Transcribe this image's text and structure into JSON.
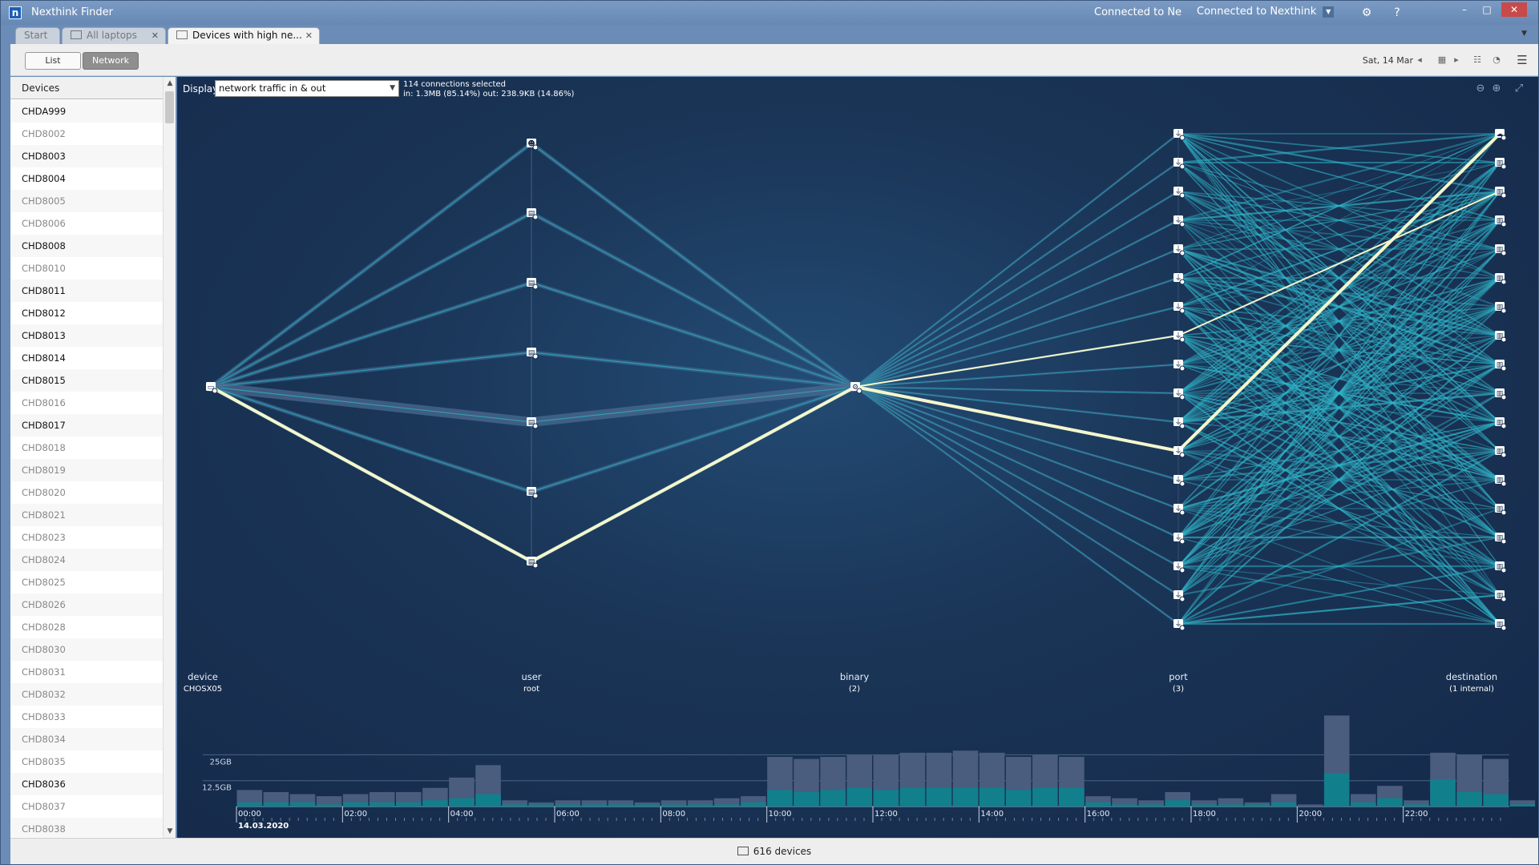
{
  "window": {
    "app_title": "Nexthink Finder",
    "logo_letter": "n",
    "connection_short": "Connected to Ne",
    "connection_select": "Connected to Nexthink"
  },
  "tabs": [
    {
      "label": "Start",
      "closable": false
    },
    {
      "label": "All laptops",
      "closable": true
    },
    {
      "label": "Devices with high ne...",
      "closable": true,
      "active": true
    }
  ],
  "toolbar": {
    "list_label": "List",
    "network_label": "Network",
    "date": "Sat, 14 Mar"
  },
  "sidebar": {
    "header": "Devices",
    "devices": [
      {
        "name": "CHDA999",
        "active": true
      },
      {
        "name": "CHD8002",
        "active": false
      },
      {
        "name": "CHD8003",
        "active": true
      },
      {
        "name": "CHD8004",
        "active": true
      },
      {
        "name": "CHD8005",
        "active": false
      },
      {
        "name": "CHD8006",
        "active": false
      },
      {
        "name": "CHD8008",
        "active": true
      },
      {
        "name": "CHD8010",
        "active": false
      },
      {
        "name": "CHD8011",
        "active": true
      },
      {
        "name": "CHD8012",
        "active": true
      },
      {
        "name": "CHD8013",
        "active": true
      },
      {
        "name": "CHD8014",
        "active": true
      },
      {
        "name": "CHD8015",
        "active": true
      },
      {
        "name": "CHD8016",
        "active": false
      },
      {
        "name": "CHD8017",
        "active": true
      },
      {
        "name": "CHD8018",
        "active": false
      },
      {
        "name": "CHD8019",
        "active": false
      },
      {
        "name": "CHD8020",
        "active": false
      },
      {
        "name": "CHD8021",
        "active": false
      },
      {
        "name": "CHD8023",
        "active": false
      },
      {
        "name": "CHD8024",
        "active": false
      },
      {
        "name": "CHD8025",
        "active": false
      },
      {
        "name": "CHD8026",
        "active": false
      },
      {
        "name": "CHD8028",
        "active": false
      },
      {
        "name": "CHD8030",
        "active": false
      },
      {
        "name": "CHD8031",
        "active": false
      },
      {
        "name": "CHD8032",
        "active": false
      },
      {
        "name": "CHD8033",
        "active": false
      },
      {
        "name": "CHD8034",
        "active": false
      },
      {
        "name": "CHD8035",
        "active": false
      },
      {
        "name": "CHD8036",
        "active": true
      },
      {
        "name": "CHD8037",
        "active": false
      },
      {
        "name": "CHD8038",
        "active": false
      }
    ]
  },
  "main": {
    "display_label": "Display",
    "display_value": "network traffic in & out",
    "connections_selected": "114 connections selected",
    "traffic_summary": "in: 1.3MB (85.14%) out: 238.9KB (14.86%)",
    "columns": [
      {
        "label": "device",
        "sub": "CHOSX05"
      },
      {
        "label": "user",
        "sub": "root"
      },
      {
        "label": "binary",
        "sub": "(2)"
      },
      {
        "label": "port",
        "sub": "(3)"
      },
      {
        "label": "destination",
        "sub": "(1 internal)"
      }
    ],
    "user_node_count": 7,
    "port_node_count": 18,
    "destination_node_count": 18
  },
  "timeline": {
    "y_labels": [
      "25GB",
      "12.5GB"
    ],
    "hours": [
      "00:00",
      "02:00",
      "04:00",
      "06:00",
      "08:00",
      "10:00",
      "12:00",
      "14:00",
      "16:00",
      "18:00",
      "20:00",
      "22:00"
    ],
    "date": "14.03.2020",
    "total_values": [
      8,
      7,
      6,
      5,
      6,
      7,
      7,
      9,
      14,
      20,
      3,
      2,
      3,
      3,
      3,
      2,
      3,
      3,
      4,
      5,
      24,
      23,
      24,
      25,
      25,
      26,
      26,
      27,
      26,
      24,
      25,
      24,
      5,
      4,
      3,
      7,
      3,
      4,
      2,
      6,
      1,
      44,
      6,
      10,
      3,
      26,
      25,
      23,
      3,
      0,
      0,
      0,
      0,
      0,
      0,
      0,
      0,
      0
    ],
    "highlight_values": [
      2,
      2,
      2,
      1,
      2,
      2,
      2,
      3,
      4,
      6,
      1,
      1,
      1,
      1,
      1,
      1,
      1,
      1,
      1,
      2,
      8,
      7,
      8,
      9,
      8,
      9,
      9,
      9,
      9,
      8,
      9,
      9,
      2,
      1,
      1,
      3,
      1,
      1,
      1,
      2,
      0,
      16,
      2,
      4,
      1,
      13,
      7,
      6,
      1,
      0,
      0,
      0,
      0,
      0,
      0,
      0,
      0,
      0
    ],
    "y_max": 36
  },
  "status": {
    "device_count": "616 devices"
  },
  "colors": {
    "bg_dark": "#15294a",
    "link_teal": "#2fb6c9",
    "link_highlight": "#f4f7cc",
    "bar_slate": "#4a5d7e",
    "bar_teal": "#11808c"
  }
}
